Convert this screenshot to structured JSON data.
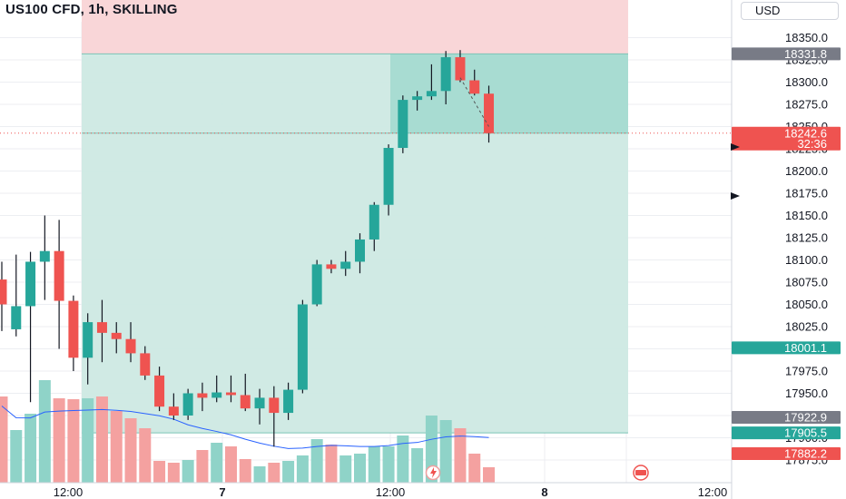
{
  "title": "US100 CFD, 1h, SKILLING",
  "currency": "USD",
  "colors": {
    "up": "#26a69a",
    "down": "#ef5350",
    "vol_up": "#8fd3c8",
    "vol_down": "#f4a1a0",
    "target_zone": "#cde9e3",
    "stop_zone": "#f9d6d8",
    "ma_line": "#2962ff"
  },
  "price_axis": {
    "ticks": [
      "18350.0",
      "18325.0",
      "18300.0",
      "18275.0",
      "18250.0",
      "18225.0",
      "18200.0",
      "18175.0",
      "18150.0",
      "18125.0",
      "18100.0",
      "18075.0",
      "18050.0",
      "18025.0",
      "18000.0",
      "17975.0",
      "17950.0",
      "17925.0",
      "17900.0",
      "17875.0"
    ],
    "labels": [
      {
        "text": "18331.8",
        "value": 18331.8,
        "kind": "gray"
      },
      {
        "text": "18242.6",
        "value": 18242.6,
        "kind": "red",
        "sub": "32:36"
      },
      {
        "text": "18001.1",
        "value": 18001.1,
        "kind": "green"
      },
      {
        "text": "17922.9",
        "value": 17922.9,
        "kind": "gray"
      },
      {
        "text": "17905.5",
        "value": 17905.5,
        "kind": "green"
      },
      {
        "text": "17882.2",
        "value": 17882.2,
        "kind": "red"
      }
    ]
  },
  "time_axis": {
    "labels": [
      "12:00",
      "7",
      "12:00",
      "8",
      "12:00"
    ]
  },
  "chart_data": {
    "type": "candlestick",
    "title": "US100 CFD, 1h, SKILLING",
    "ylim": [
      17860,
      18370
    ],
    "position": {
      "entry": 18242.6,
      "stop": 18331.8,
      "target": 17905.5
    },
    "candles": [
      {
        "o": 18078,
        "h": 18098,
        "l": 18020,
        "c": 18050
      },
      {
        "o": 18022,
        "h": 18106,
        "l": 18014,
        "c": 18048
      },
      {
        "o": 18048,
        "h": 18109,
        "l": 17940,
        "c": 18098
      },
      {
        "o": 18098,
        "h": 18150,
        "l": 18055,
        "c": 18110
      },
      {
        "o": 18110,
        "h": 18145,
        "l": 18000,
        "c": 18054
      },
      {
        "o": 18054,
        "h": 18060,
        "l": 17975,
        "c": 17990
      },
      {
        "o": 17990,
        "h": 18040,
        "l": 17960,
        "c": 18030
      },
      {
        "o": 18030,
        "h": 18055,
        "l": 17985,
        "c": 18018
      },
      {
        "o": 18018,
        "h": 18030,
        "l": 17995,
        "c": 18011
      },
      {
        "o": 18011,
        "h": 18030,
        "l": 17985,
        "c": 17995
      },
      {
        "o": 17995,
        "h": 18003,
        "l": 17965,
        "c": 17970
      },
      {
        "o": 17970,
        "h": 17980,
        "l": 17930,
        "c": 17935
      },
      {
        "o": 17935,
        "h": 17950,
        "l": 17920,
        "c": 17925
      },
      {
        "o": 17925,
        "h": 17955,
        "l": 17920,
        "c": 17950
      },
      {
        "o": 17950,
        "h": 17962,
        "l": 17930,
        "c": 17945
      },
      {
        "o": 17945,
        "h": 17970,
        "l": 17940,
        "c": 17951
      },
      {
        "o": 17951,
        "h": 17970,
        "l": 17940,
        "c": 17948
      },
      {
        "o": 17948,
        "h": 17972,
        "l": 17930,
        "c": 17933
      },
      {
        "o": 17933,
        "h": 17955,
        "l": 17915,
        "c": 17945
      },
      {
        "o": 17945,
        "h": 17958,
        "l": 17890,
        "c": 17928
      },
      {
        "o": 17928,
        "h": 17962,
        "l": 17920,
        "c": 17954
      },
      {
        "o": 17954,
        "h": 18055,
        "l": 17950,
        "c": 18050
      },
      {
        "o": 18050,
        "h": 18100,
        "l": 18048,
        "c": 18095
      },
      {
        "o": 18095,
        "h": 18100,
        "l": 18085,
        "c": 18090
      },
      {
        "o": 18090,
        "h": 18110,
        "l": 18082,
        "c": 18098
      },
      {
        "o": 18098,
        "h": 18130,
        "l": 18085,
        "c": 18123
      },
      {
        "o": 18123,
        "h": 18165,
        "l": 18110,
        "c": 18162
      },
      {
        "o": 18162,
        "h": 18230,
        "l": 18150,
        "c": 18226
      },
      {
        "o": 18226,
        "h": 18285,
        "l": 18220,
        "c": 18280
      },
      {
        "o": 18280,
        "h": 18290,
        "l": 18268,
        "c": 18284
      },
      {
        "o": 18284,
        "h": 18320,
        "l": 18280,
        "c": 18290
      },
      {
        "o": 18290,
        "h": 18335,
        "l": 18275,
        "c": 18328
      },
      {
        "o": 18328,
        "h": 18336,
        "l": 18300,
        "c": 18302
      },
      {
        "o": 18302,
        "h": 18314,
        "l": 18285,
        "c": 18287
      },
      {
        "o": 18287,
        "h": 18296,
        "l": 18232,
        "c": 18242.6
      }
    ],
    "volumes": [
      95,
      58,
      76,
      113,
      93,
      92,
      93,
      95,
      79,
      71,
      60,
      24,
      22,
      25,
      36,
      44,
      40,
      26,
      18,
      22,
      24,
      30,
      48,
      42,
      30,
      32,
      40,
      40,
      52,
      38,
      74,
      69,
      60,
      32,
      17
    ]
  }
}
